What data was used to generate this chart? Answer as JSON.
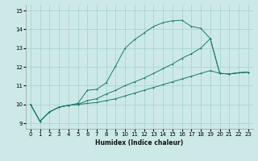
{
  "title": "",
  "xlabel": "Humidex (Indice chaleur)",
  "ylabel": "",
  "background_color": "#cce9e7",
  "grid_color": "#aad4d0",
  "line_color": "#1a7a6e",
  "xlim": [
    -0.5,
    23.5
  ],
  "ylim": [
    8.7,
    15.3
  ],
  "xticks": [
    0,
    1,
    2,
    3,
    4,
    5,
    6,
    7,
    8,
    9,
    10,
    11,
    12,
    13,
    14,
    15,
    16,
    17,
    18,
    19,
    20,
    21,
    22,
    23
  ],
  "yticks": [
    9,
    10,
    11,
    12,
    13,
    14,
    15
  ],
  "series1_x": [
    0,
    1,
    2,
    3,
    4,
    5,
    6,
    7,
    8,
    9,
    10,
    11,
    12,
    13,
    14,
    15,
    16,
    17,
    18,
    19,
    20,
    21,
    22,
    23
  ],
  "series1_y": [
    10.0,
    9.1,
    9.6,
    9.85,
    9.95,
    10.05,
    10.75,
    10.8,
    11.15,
    12.05,
    13.0,
    13.45,
    13.8,
    14.15,
    14.35,
    14.45,
    14.48,
    14.15,
    14.05,
    13.5,
    11.65,
    11.62,
    11.68,
    11.72
  ],
  "series2_x": [
    0,
    1,
    2,
    3,
    4,
    5,
    6,
    7,
    8,
    9,
    10,
    11,
    12,
    13,
    14,
    15,
    16,
    17,
    18,
    19,
    20,
    21,
    22,
    23
  ],
  "series2_y": [
    10.0,
    9.1,
    9.6,
    9.85,
    9.95,
    10.0,
    10.2,
    10.3,
    10.55,
    10.75,
    11.0,
    11.2,
    11.4,
    11.65,
    11.9,
    12.15,
    12.45,
    12.7,
    13.0,
    13.5,
    11.65,
    11.62,
    11.68,
    11.72
  ],
  "series3_x": [
    0,
    1,
    2,
    3,
    4,
    5,
    6,
    7,
    8,
    9,
    10,
    11,
    12,
    13,
    14,
    15,
    16,
    17,
    18,
    19,
    20,
    21,
    22,
    23
  ],
  "series3_y": [
    10.0,
    9.1,
    9.6,
    9.85,
    9.95,
    10.0,
    10.05,
    10.1,
    10.2,
    10.3,
    10.45,
    10.6,
    10.75,
    10.9,
    11.05,
    11.2,
    11.35,
    11.5,
    11.65,
    11.8,
    11.65,
    11.62,
    11.68,
    11.72
  ]
}
